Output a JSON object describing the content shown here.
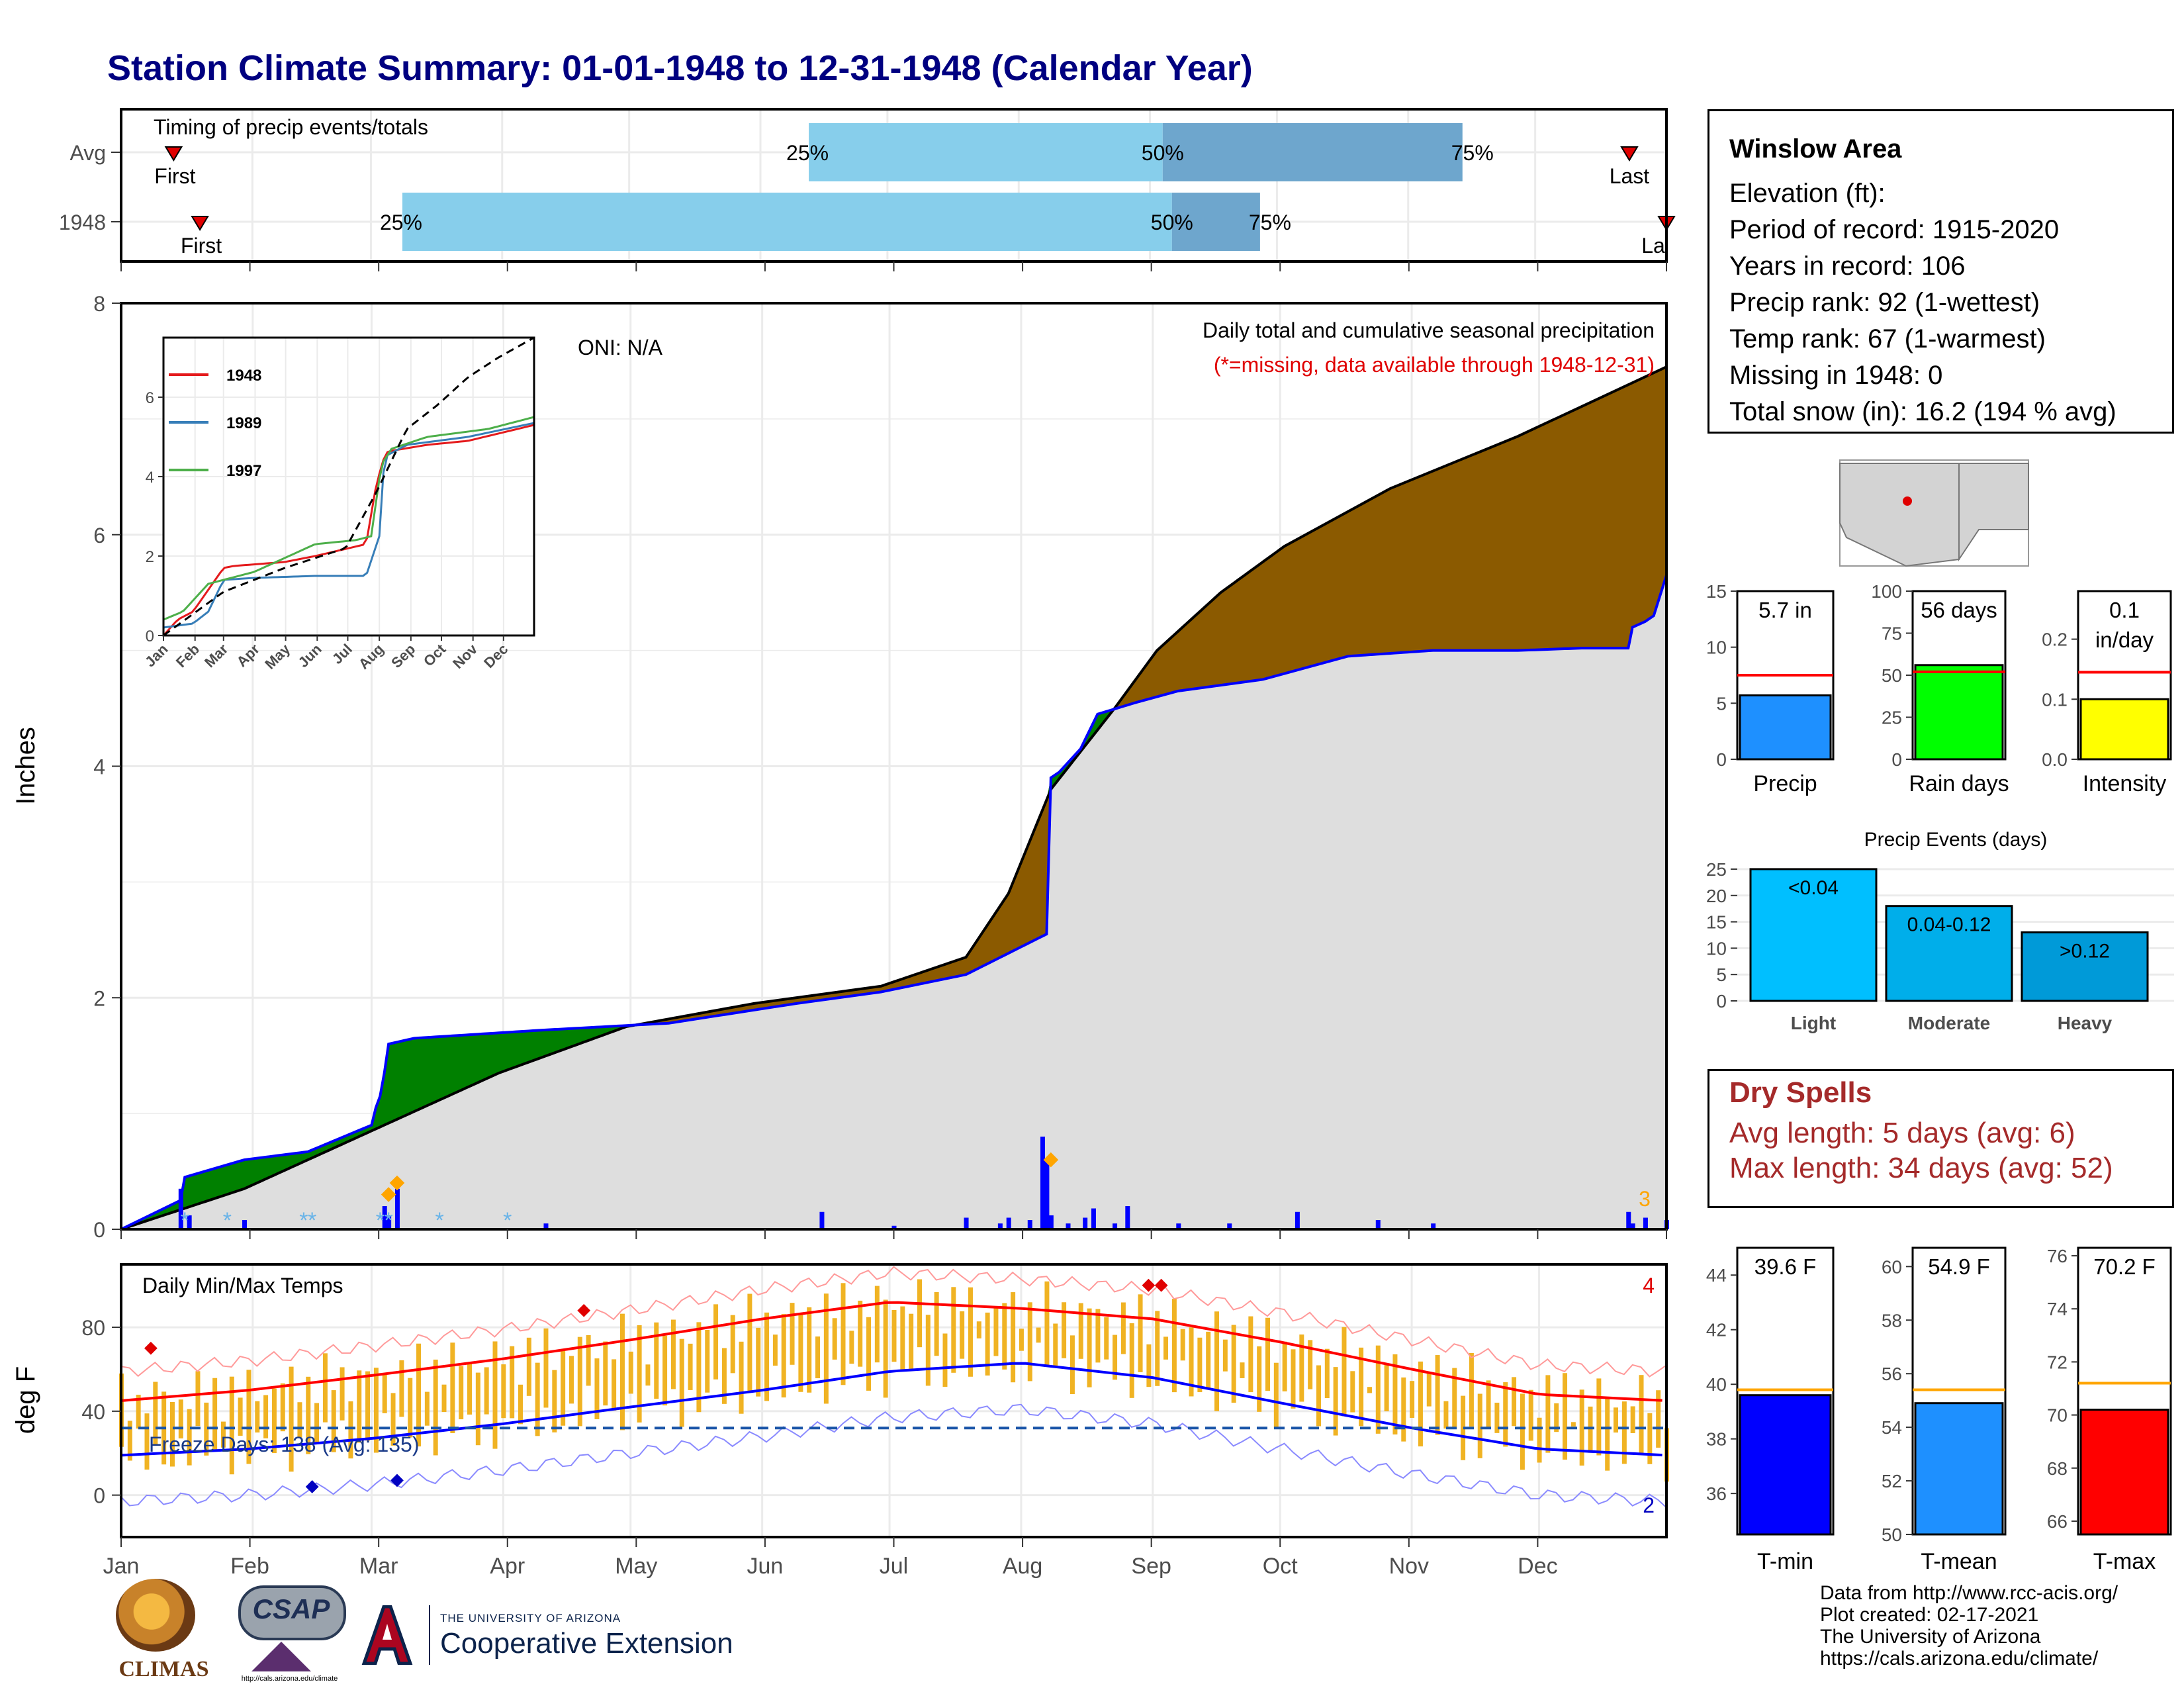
{
  "page": {
    "title": "Station Climate Summary: 01-01-1948 to 12-31-1948 (Calendar Year)"
  },
  "timing": {
    "title": "Timing of precip events/totals",
    "rows": [
      {
        "label": "Avg",
        "first_label": "First",
        "last_label": "Last",
        "first_frac": 0.034,
        "last_frac": 0.976,
        "p25": 0.445,
        "p50": 0.674,
        "p75": 0.868,
        "p25_label": "25%",
        "p50_label": "50%",
        "p75_label": "75%"
      },
      {
        "label": "1948",
        "first_label": "First",
        "last_label": "La",
        "first_frac": 0.051,
        "last_frac": 1.0,
        "p25": 0.182,
        "p50": 0.68,
        "p75": 0.737,
        "p25_label": "25%",
        "p50_label": "50%",
        "p75_label": "75%"
      }
    ]
  },
  "precip_panel": {
    "ylabel": "Inches",
    "oni": "ONI: N/A",
    "caption1": "Daily total and cumulative seasonal precipitation",
    "caption2": "(*=missing, data available through 1948-12-31)",
    "ytick_labels": [
      "0",
      "2",
      "4",
      "6",
      "8"
    ],
    "corner_count": "3"
  },
  "inset": {
    "ytick_labels": [
      "0",
      "2",
      "4",
      "6"
    ],
    "xtick_labels": [
      "Jan",
      "Feb",
      "Mar",
      "Apr",
      "May",
      "Jun",
      "Jul",
      "Aug",
      "Sep",
      "Oct",
      "Nov",
      "Dec"
    ],
    "legend": [
      {
        "name": "1948",
        "color": "#e41a1c"
      },
      {
        "name": "1989",
        "color": "#377eb8"
      },
      {
        "name": "1997",
        "color": "#4daf4a"
      }
    ]
  },
  "temp_panel": {
    "ylabel": "deg F",
    "title": "Daily Min/Max Temps",
    "freeze_label": "Freeze Days: 138 (Avg: 135)",
    "ytick_labels": [
      "0",
      "40",
      "80"
    ],
    "count_top": "4",
    "count_bottom": "2"
  },
  "months": [
    "Jan",
    "Feb",
    "Mar",
    "Apr",
    "May",
    "Jun",
    "Jul",
    "Aug",
    "Sep",
    "Oct",
    "Nov",
    "Dec"
  ],
  "station": {
    "name": "Winslow Area",
    "elevation": "Elevation (ft):",
    "period": "Period of record: 1915-2020",
    "years": "Years in record: 106",
    "precip_rank": "Precip rank: 92 (1-wettest)",
    "temp_rank": "Temp rank: 67 (1-warmest)",
    "missing": "Missing in 1948: 0",
    "snow": "Total snow (in): 16.2 (194 % avg)"
  },
  "dry_spells": {
    "title": "Dry Spells",
    "avg": "Avg length: 5 days (avg: 6)",
    "max": "Max length: 34 days (avg: 52)"
  },
  "events_title": "Precip Events (days)",
  "credits": [
    "Data from http://www.rcc-acis.org/",
    "Plot created: 02-17-2021",
    "The University of Arizona",
    "https://cals.arizona.edu/climate/"
  ],
  "logos": {
    "climas": "CLIMAS",
    "csap": "CSAP",
    "csap_url": "http://cals.arizona.edu/climate",
    "ua_small": "THE UNIVERSITY OF ARIZONA",
    "ua_big": "Cooperative Extension"
  },
  "colors": {
    "title": "#000080",
    "above_avg": "#008000",
    "below_avg": "#8b5a00",
    "precip": "#0000ff",
    "temp_band": "#f0b323",
    "max_avg": "#ff0000",
    "min_avg": "#0000ff",
    "dry": "#a52a2a"
  },
  "chart_data": [
    {
      "type": "line",
      "title": "Daily total and cumulative seasonal precipitation",
      "ylabel": "Inches",
      "ylim": [
        0,
        8
      ],
      "months": [
        "Jan",
        "Feb",
        "Mar",
        "Apr",
        "May",
        "Jun",
        "Jul",
        "Aug",
        "Sep",
        "Oct",
        "Nov",
        "Dec"
      ],
      "series": [
        {
          "name": "1948",
          "x": [
            1,
            15,
            16,
            30,
            45,
            60,
            61,
            62,
            63,
            64,
            70,
            100,
            130,
            160,
            180,
            200,
            219,
            220,
            222,
            227,
            231,
            240,
            250,
            270,
            290,
            310,
            330,
            345,
            356,
            357,
            360,
            362,
            365
          ],
          "y": [
            0.0,
            0.25,
            0.45,
            0.6,
            0.67,
            0.9,
            1.05,
            1.15,
            1.35,
            1.6,
            1.65,
            1.72,
            1.78,
            1.95,
            2.05,
            2.2,
            2.55,
            3.9,
            3.95,
            4.15,
            4.45,
            4.55,
            4.65,
            4.75,
            4.95,
            5.0,
            5.0,
            5.02,
            5.02,
            5.2,
            5.25,
            5.3,
            5.65
          ]
        },
        {
          "x": [
            1,
            30,
            60,
            90,
            120,
            150,
            180,
            200,
            210,
            220,
            235,
            245,
            260,
            275,
            300,
            330,
            365
          ],
          "y": [
            0.0,
            0.35,
            0.85,
            1.35,
            1.75,
            1.95,
            2.1,
            2.35,
            2.9,
            3.8,
            4.5,
            5.0,
            5.5,
            5.9,
            6.4,
            6.85,
            7.45
          ]
        }
      ],
      "daily_precip_bars": {
        "x": [
          15,
          17,
          30,
          63,
          64,
          66,
          101,
          166,
          183,
          200,
          208,
          210,
          215,
          218,
          219,
          220,
          224,
          228,
          230,
          235,
          238,
          250,
          262,
          278,
          297,
          310,
          356,
          357,
          360,
          365
        ],
        "y": [
          0.35,
          0.12,
          0.08,
          0.2,
          0.12,
          0.35,
          0.05,
          0.15,
          0.03,
          0.1,
          0.05,
          0.1,
          0.08,
          0.8,
          0.6,
          0.12,
          0.05,
          0.1,
          0.18,
          0.05,
          0.2,
          0.05,
          0.05,
          0.15,
          0.08,
          0.05,
          0.15,
          0.05,
          0.1,
          0.08
        ]
      }
    },
    {
      "type": "line",
      "title": "",
      "ylim": [
        0,
        7.5
      ],
      "series": [
        {
          "name": "1948",
          "x": [
            1,
            15,
            30,
            60,
            70,
            120,
            150,
            200,
            210,
            219,
            225,
            260,
            300,
            365
          ],
          "y": [
            0,
            0.4,
            0.6,
            1.7,
            1.75,
            1.85,
            2.0,
            2.3,
            3.8,
            4.6,
            4.65,
            4.8,
            4.9,
            5.3
          ]
        },
        {
          "name": "1989",
          "x": [
            1,
            30,
            45,
            60,
            90,
            150,
            200,
            213,
            218,
            240,
            300,
            365
          ],
          "y": [
            0.2,
            0.3,
            0.6,
            1.4,
            1.45,
            1.5,
            1.5,
            2.5,
            4.5,
            4.8,
            5.0,
            5.35
          ]
        },
        {
          "name": "1997",
          "x": [
            1,
            20,
            45,
            90,
            150,
            190,
            205,
            215,
            225,
            260,
            320,
            365
          ],
          "y": [
            0.4,
            0.6,
            1.3,
            1.6,
            2.3,
            2.4,
            2.5,
            4.3,
            4.7,
            5.0,
            5.2,
            5.5
          ]
        },
        {
          "x": [
            1,
            60,
            120,
            180,
            210,
            240,
            270,
            300,
            330,
            365
          ],
          "y": [
            0,
            1.1,
            1.7,
            2.2,
            3.6,
            5.2,
            5.8,
            6.5,
            7.0,
            7.5
          ]
        }
      ]
    },
    {
      "type": "line",
      "title": "Daily Min/Max Temps",
      "ylabel": "deg F",
      "ylim": [
        -20,
        110
      ],
      "series": [
        {
          "x": [
            1,
            31,
            60,
            91,
            121,
            152,
            182,
            213,
            244,
            274,
            305,
            335,
            365
          ],
          "y": [
            45,
            50,
            57,
            65,
            74,
            84,
            92,
            89,
            84,
            73,
            60,
            48,
            45
          ]
        },
        {
          "x": [
            1,
            31,
            60,
            91,
            121,
            152,
            182,
            213,
            244,
            274,
            305,
            335,
            365
          ],
          "y": [
            19,
            22,
            27,
            34,
            42,
            50,
            59,
            63,
            56,
            44,
            32,
            22,
            19
          ]
        }
      ],
      "freeze_line": 32
    },
    {
      "type": "bar",
      "categories": [
        "Precip",
        "Rain days",
        "Intensity"
      ],
      "values": [
        5.7,
        56,
        0.1
      ],
      "value_labels": [
        "5.7 in",
        "56 days",
        "0.1 in/day"
      ],
      "averages": [
        7.5,
        52,
        0.145
      ],
      "ylims": [
        [
          0,
          15
        ],
        [
          0,
          100
        ],
        [
          0,
          0.28
        ]
      ],
      "ytick_labels": [
        [
          "0",
          "5",
          "10",
          "15"
        ],
        [
          "0",
          "25",
          "50",
          "75",
          "100"
        ],
        [
          "0.0",
          "0.1",
          "0.2"
        ]
      ]
    },
    {
      "type": "bar",
      "title": "Precip Events (days)",
      "categories": [
        "Light",
        "Moderate",
        "Heavy"
      ],
      "values": [
        25,
        18,
        13
      ],
      "value_labels": [
        "<0.04",
        "0.04-0.12",
        ">0.12"
      ],
      "ytick_labels": [
        "0",
        "5",
        "10",
        "15",
        "20",
        "25"
      ],
      "ylim": [
        0,
        26
      ]
    },
    {
      "type": "bar",
      "categories": [
        "T-min",
        "T-mean",
        "T-max"
      ],
      "values": [
        39.6,
        54.9,
        70.2
      ],
      "value_labels": [
        "39.6 F",
        "54.9 F",
        "70.2 F"
      ],
      "averages": [
        39.8,
        55.4,
        71.2
      ],
      "ylims": [
        [
          34.5,
          45
        ],
        [
          50,
          60.7
        ],
        [
          65.5,
          76.3
        ]
      ],
      "ytick_labels": [
        [
          "36",
          "38",
          "40",
          "42",
          "44"
        ],
        [
          "50",
          "52",
          "54",
          "56",
          "58",
          "60"
        ],
        [
          "66",
          "68",
          "70",
          "72",
          "74",
          "76"
        ]
      ]
    }
  ]
}
